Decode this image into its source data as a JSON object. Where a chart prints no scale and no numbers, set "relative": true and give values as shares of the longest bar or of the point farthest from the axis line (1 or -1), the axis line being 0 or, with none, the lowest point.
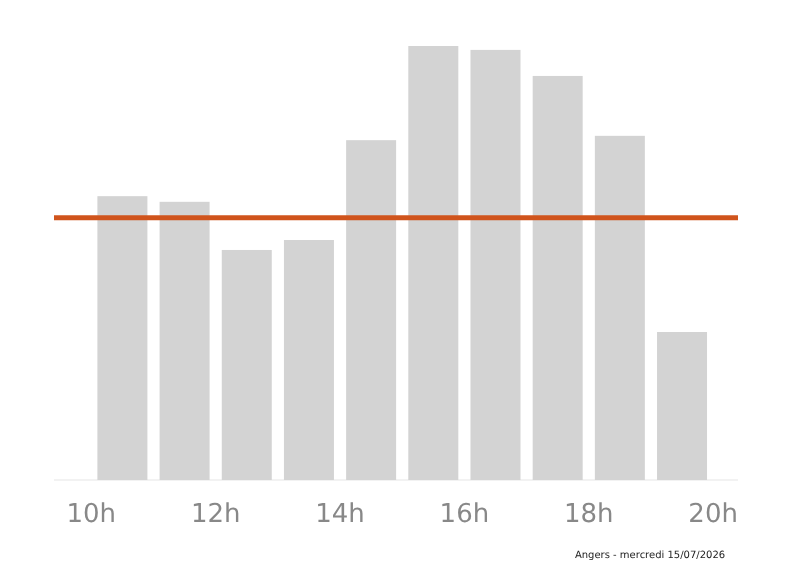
{
  "chart_data": {
    "type": "bar",
    "relative": true,
    "x": [
      10.5,
      11.5,
      12.5,
      13.5,
      14.5,
      15.5,
      16.5,
      17.5,
      18.5,
      19.5
    ],
    "values": [
      0.654,
      0.641,
      0.53,
      0.553,
      0.783,
      1,
      0.991,
      0.931,
      0.793,
      0.341
    ],
    "color": "#d3d3d3",
    "xlim": [
      9.4,
      20.4
    ],
    "xticks": [
      {
        "value": 10,
        "label": "10h"
      },
      {
        "value": 12,
        "label": "12h"
      },
      {
        "value": 14,
        "label": "14h"
      },
      {
        "value": 16,
        "label": "16h"
      },
      {
        "value": 18,
        "label": "18h"
      },
      {
        "value": 20,
        "label": "20h"
      }
    ],
    "ref_lines": [
      {
        "axis": "y",
        "value": 0.604,
        "color": "#d0541c"
      }
    ],
    "annotations": [
      "Angers - mercredi 15/07/2026"
    ],
    "grid": false
  }
}
